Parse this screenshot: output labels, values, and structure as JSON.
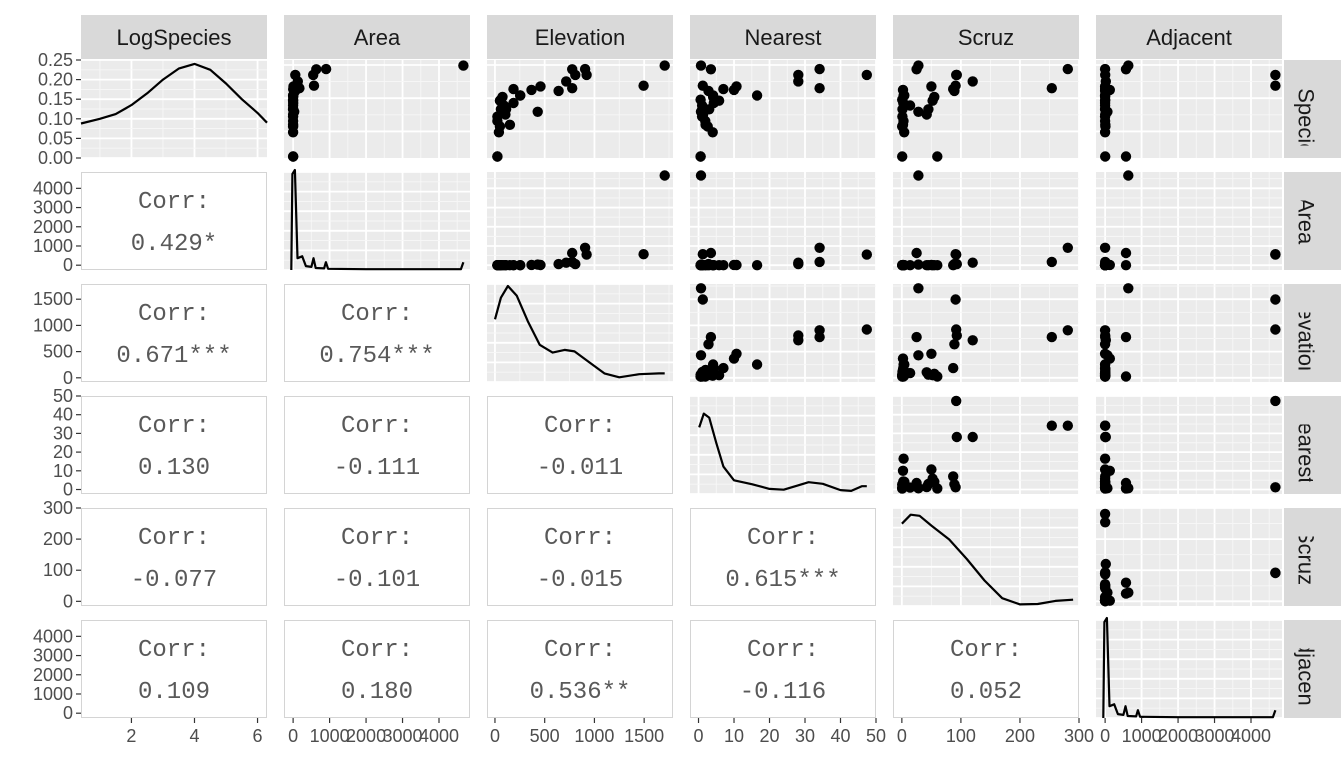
{
  "chart_data": {
    "type": "scatter",
    "title": "",
    "variables": [
      "LogSpecies",
      "Area",
      "Elevation",
      "Nearest",
      "Scruz",
      "Adjacent"
    ],
    "diagonal": "density",
    "upper": "scatter",
    "lower": "correlation",
    "corr_label": "Corr:",
    "axes": {
      "LogSpecies": {
        "range": [
          0.4,
          6.3
        ],
        "ticks": [
          2,
          4,
          6
        ],
        "tick_labels": [
          "2",
          "4",
          "6"
        ]
      },
      "Area": {
        "range": [
          -250,
          4850
        ],
        "ticks": [
          0,
          1000,
          2000,
          3000,
          4000
        ],
        "tick_labels": [
          "0",
          "1000",
          "2000",
          "3000",
          "4000"
        ]
      },
      "Elevation": {
        "range": [
          -80,
          1790
        ],
        "ticks": [
          0,
          500,
          1000,
          1500
        ],
        "tick_labels": [
          "0",
          "500",
          "1000",
          "1500"
        ]
      },
      "Nearest": {
        "range": [
          -2.4,
          50
        ],
        "ticks": [
          0,
          10,
          20,
          30,
          40,
          50
        ],
        "tick_labels": [
          "0",
          "10",
          "20",
          "30",
          "40",
          "50"
        ]
      },
      "Scruz": {
        "range": [
          -15,
          300
        ],
        "ticks": [
          0,
          100,
          200,
          300
        ],
        "tick_labels": [
          "0",
          "100",
          "200",
          "300"
        ]
      },
      "Adjacent": {
        "range": [
          -250,
          4850
        ],
        "ticks": [
          0,
          1000,
          2000,
          3000,
          4000
        ],
        "tick_labels": [
          "0",
          "1000",
          "2000",
          "3000",
          "4000"
        ]
      }
    },
    "density_axis": {
      "range": [
        0,
        0.25
      ],
      "ticks": [
        0,
        0.05,
        0.1,
        0.15,
        0.2,
        0.25
      ],
      "tick_labels": [
        "0.00",
        "0.05",
        "0.10",
        "0.15",
        "0.20",
        "0.25"
      ]
    },
    "densities": {
      "LogSpecies": [
        [
          0.4,
          0.088
        ],
        [
          1.0,
          0.1
        ],
        [
          1.5,
          0.112
        ],
        [
          2.0,
          0.135
        ],
        [
          2.5,
          0.165
        ],
        [
          3.0,
          0.2
        ],
        [
          3.5,
          0.228
        ],
        [
          4.0,
          0.24
        ],
        [
          4.5,
          0.225
        ],
        [
          5.0,
          0.19
        ],
        [
          5.5,
          0.15
        ],
        [
          6.0,
          0.115
        ],
        [
          6.3,
          0.09
        ]
      ],
      "Area": [
        [
          -50,
          0.0
        ],
        [
          -20,
          0.245
        ],
        [
          50,
          0.255
        ],
        [
          120,
          0.03
        ],
        [
          250,
          0.035
        ],
        [
          350,
          0.01
        ],
        [
          500,
          0.008
        ],
        [
          560,
          0.03
        ],
        [
          620,
          0.005
        ],
        [
          850,
          0.004
        ],
        [
          900,
          0.02
        ],
        [
          960,
          0.003
        ],
        [
          2000,
          0.002
        ],
        [
          4600,
          0.002
        ],
        [
          4650,
          0.015
        ],
        [
          4670,
          0.02
        ]
      ],
      "Elevation": [
        [
          0,
          0.16
        ],
        [
          60,
          0.215
        ],
        [
          130,
          0.245
        ],
        [
          220,
          0.22
        ],
        [
          330,
          0.155
        ],
        [
          450,
          0.095
        ],
        [
          580,
          0.075
        ],
        [
          700,
          0.082
        ],
        [
          800,
          0.078
        ],
        [
          950,
          0.05
        ],
        [
          1100,
          0.022
        ],
        [
          1250,
          0.012
        ],
        [
          1450,
          0.02
        ],
        [
          1650,
          0.022
        ],
        [
          1707,
          0.022
        ]
      ],
      "Nearest": [
        [
          0.2,
          0.17
        ],
        [
          1.5,
          0.205
        ],
        [
          3,
          0.195
        ],
        [
          5,
          0.13
        ],
        [
          7,
          0.07
        ],
        [
          10,
          0.035
        ],
        [
          15,
          0.025
        ],
        [
          20,
          0.013
        ],
        [
          24,
          0.011
        ],
        [
          28,
          0.022
        ],
        [
          31,
          0.03
        ],
        [
          35,
          0.026
        ],
        [
          40,
          0.01
        ],
        [
          43,
          0.008
        ],
        [
          46,
          0.02
        ],
        [
          47.4,
          0.02
        ]
      ],
      "Scruz": [
        [
          0,
          0.21
        ],
        [
          15,
          0.233
        ],
        [
          30,
          0.23
        ],
        [
          50,
          0.205
        ],
        [
          80,
          0.17
        ],
        [
          110,
          0.12
        ],
        [
          140,
          0.065
        ],
        [
          170,
          0.02
        ],
        [
          200,
          0.004
        ],
        [
          230,
          0.005
        ],
        [
          260,
          0.013
        ],
        [
          290,
          0.016
        ]
      ],
      "Adjacent": [
        [
          -50,
          0.0
        ],
        [
          -20,
          0.245
        ],
        [
          50,
          0.255
        ],
        [
          120,
          0.03
        ],
        [
          250,
          0.035
        ],
        [
          350,
          0.01
        ],
        [
          500,
          0.008
        ],
        [
          560,
          0.03
        ],
        [
          620,
          0.005
        ],
        [
          850,
          0.004
        ],
        [
          900,
          0.02
        ],
        [
          960,
          0.003
        ],
        [
          2000,
          0.002
        ],
        [
          4600,
          0.002
        ],
        [
          4650,
          0.015
        ],
        [
          4670,
          0.02
        ]
      ]
    },
    "correlations": {
      "Area|LogSpecies": "0.429*",
      "Elevation|LogSpecies": "0.671***",
      "Elevation|Area": "0.754***",
      "Nearest|LogSpecies": "0.130",
      "Nearest|Area": "-0.111",
      "Nearest|Elevation": "-0.011",
      "Scruz|LogSpecies": "-0.077",
      "Scruz|Area": "-0.101",
      "Scruz|Elevation": "-0.015",
      "Scruz|Nearest": "0.615***",
      "Adjacent|LogSpecies": "0.109",
      "Adjacent|Area": "0.180",
      "Adjacent|Elevation": "0.536**",
      "Adjacent|Nearest": "-0.116",
      "Adjacent|Scruz": "0.052"
    },
    "points": [
      {
        "LogSpecies": 0.49,
        "Area": 0.2,
        "Elevation": 25,
        "Nearest": 0.6,
        "Scruz": 0.6,
        "Adjacent": 1.84
      },
      {
        "LogSpecies": 0.49,
        "Area": 1.24,
        "Elevation": 25,
        "Nearest": 0.6,
        "Scruz": 60,
        "Adjacent": 572.33
      },
      {
        "LogSpecies": 1.95,
        "Area": 0.34,
        "Elevation": 40,
        "Nearest": 4,
        "Scruz": 4,
        "Adjacent": 0.78
      },
      {
        "LogSpecies": 2.3,
        "Area": 0.21,
        "Elevation": 50,
        "Nearest": 2.6,
        "Scruz": 0.6,
        "Adjacent": 8.5
      },
      {
        "LogSpecies": 2.63,
        "Area": 0.1,
        "Elevation": 25,
        "Nearest": 1.9,
        "Scruz": 2.8,
        "Adjacent": 0.1
      },
      {
        "LogSpecies": 2.4,
        "Area": 0.05,
        "Elevation": 150,
        "Nearest": 2,
        "Scruz": 1.9,
        "Adjacent": 4.89
      },
      {
        "LogSpecies": 3.33,
        "Area": 0.18,
        "Elevation": 112,
        "Nearest": 1.1,
        "Scruz": 1.1,
        "Adjacent": 1.24
      },
      {
        "LogSpecies": 2.89,
        "Area": 0.01,
        "Elevation": 25,
        "Nearest": 1,
        "Scruz": 1,
        "Adjacent": 0.5
      },
      {
        "LogSpecies": 3.71,
        "Area": 1.01,
        "Elevation": 186,
        "Nearest": 4.3,
        "Scruz": 2.4,
        "Adjacent": 0.34
      },
      {
        "LogSpecies": 4.08,
        "Area": 1.24,
        "Elevation": 76,
        "Nearest": 4.1,
        "Scruz": 55,
        "Adjacent": 0.1
      },
      {
        "LogSpecies": 3.91,
        "Area": 0.2,
        "Elevation": 60,
        "Nearest": 0.6,
        "Scruz": 0.6,
        "Adjacent": 1.05
      },
      {
        "LogSpecies": 3.33,
        "Area": 0.03,
        "Elevation": 60,
        "Nearest": 3,
        "Scruz": 45,
        "Adjacent": 0.87
      },
      {
        "LogSpecies": 3.56,
        "Area": 0.02,
        "Elevation": 90,
        "Nearest": 1,
        "Scruz": 14,
        "Adjacent": 0.78
      },
      {
        "LogSpecies": 4.16,
        "Area": 1.05,
        "Elevation": 254,
        "Nearest": 16.5,
        "Scruz": 2.9,
        "Adjacent": 0.18
      },
      {
        "LogSpecies": 3.02,
        "Area": 0.52,
        "Elevation": 105,
        "Nearest": 1.3,
        "Scruz": 42,
        "Adjacent": 1.05
      },
      {
        "LogSpecies": 3.85,
        "Area": 0.05,
        "Elevation": 50,
        "Nearest": 5.8,
        "Scruz": 52,
        "Adjacent": 0.5
      },
      {
        "LogSpecies": 4.55,
        "Area": 1.5,
        "Elevation": 186,
        "Nearest": 7,
        "Scruz": 87,
        "Adjacent": 2.33
      },
      {
        "LogSpecies": 4.5,
        "Area": 17.35,
        "Elevation": 367,
        "Nearest": 10,
        "Scruz": 2,
        "Adjacent": 129.49
      },
      {
        "LogSpecies": 4.17,
        "Area": 0.78,
        "Elevation": 254,
        "Nearest": 4.1,
        "Scruz": 4.1,
        "Adjacent": 0.21
      },
      {
        "LogSpecies": 4.71,
        "Area": 9.8,
        "Elevation": 458,
        "Nearest": 10.7,
        "Scruz": 50,
        "Adjacent": 0.52
      },
      {
        "LogSpecies": 3.18,
        "Area": 29.5,
        "Elevation": 430,
        "Nearest": 0.7,
        "Scruz": 28,
        "Adjacent": 62.8
      },
      {
        "LogSpecies": 4.44,
        "Area": 58.3,
        "Elevation": 640,
        "Nearest": 2.8,
        "Scruz": 89,
        "Adjacent": 0.34
      },
      {
        "LogSpecies": 5.01,
        "Area": 129.49,
        "Elevation": 716,
        "Nearest": 28.1,
        "Scruz": 120,
        "Adjacent": 17.35
      },
      {
        "LogSpecies": 5.4,
        "Area": 59.56,
        "Elevation": 808,
        "Nearest": 28.1,
        "Scruz": 93,
        "Adjacent": 1.24
      },
      {
        "LogSpecies": 5.74,
        "Area": 634.49,
        "Elevation": 777,
        "Nearest": 3.5,
        "Scruz": 25,
        "Adjacent": 572.33
      },
      {
        "LogSpecies": 5.4,
        "Area": 551.62,
        "Elevation": 921,
        "Nearest": 47.4,
        "Scruz": 92,
        "Adjacent": 4669.32
      },
      {
        "LogSpecies": 5.75,
        "Area": 903.82,
        "Elevation": 906,
        "Nearest": 34.1,
        "Scruz": 281,
        "Adjacent": 0.18
      },
      {
        "LogSpecies": 5.96,
        "Area": 4669.32,
        "Elevation": 1707,
        "Nearest": 0.7,
        "Scruz": 28,
        "Adjacent": 634.49
      },
      {
        "LogSpecies": 4.75,
        "Area": 572.33,
        "Elevation": 1494,
        "Nearest": 1.2,
        "Scruz": 91,
        "Adjacent": 4669.32
      },
      {
        "LogSpecies": 4.6,
        "Area": 170.92,
        "Elevation": 777,
        "Nearest": 34.1,
        "Scruz": 254,
        "Adjacent": 2.85
      }
    ]
  }
}
